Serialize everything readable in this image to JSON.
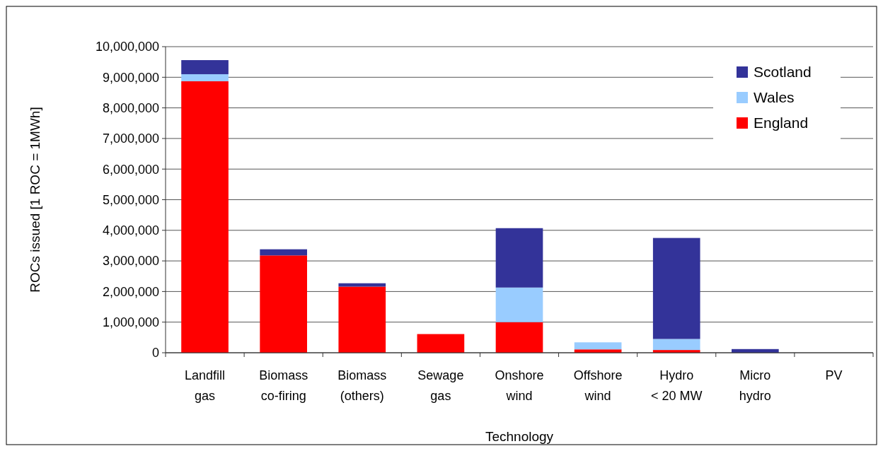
{
  "chart_data": {
    "type": "bar",
    "stacked": true,
    "xlabel": "Technology",
    "ylabel": "ROCs issued [1 ROC =  1MWh]",
    "categories": [
      "Landfill\ngas",
      "Biomass\nco-firing",
      "Biomass\n(others)",
      "Sewage\ngas",
      "Onshore\nwind",
      "Offshore\nwind",
      "Hydro\n< 20 MW",
      "Micro\nhydro",
      "PV"
    ],
    "series": [
      {
        "name": "England",
        "color": "#ff0000",
        "values": [
          8870000,
          3180000,
          2160000,
          610000,
          1000000,
          110000,
          90000,
          0,
          0
        ]
      },
      {
        "name": "Wales",
        "color": "#99ccff",
        "values": [
          230000,
          0,
          0,
          0,
          1130000,
          230000,
          360000,
          0,
          0
        ]
      },
      {
        "name": "Scotland",
        "color": "#333399",
        "values": [
          460000,
          200000,
          110000,
          0,
          1940000,
          0,
          3300000,
          120000,
          0
        ]
      }
    ],
    "ylim": [
      0,
      10000000
    ],
    "yticks": [
      {
        "value": 0,
        "label": "0"
      },
      {
        "value": 1000000,
        "label": "1,000,000"
      },
      {
        "value": 2000000,
        "label": "2,000,000"
      },
      {
        "value": 3000000,
        "label": "3,000,000"
      },
      {
        "value": 4000000,
        "label": "4,000,000"
      },
      {
        "value": 5000000,
        "label": "5,000,000"
      },
      {
        "value": 6000000,
        "label": "6,000,000"
      },
      {
        "value": 7000000,
        "label": "7,000,000"
      },
      {
        "value": 8000000,
        "label": "8,000,000"
      },
      {
        "value": 9000000,
        "label": "9,000,000"
      },
      {
        "value": 10000000,
        "label": "10,000,000"
      }
    ],
    "grid": "y",
    "legend": "top right"
  }
}
